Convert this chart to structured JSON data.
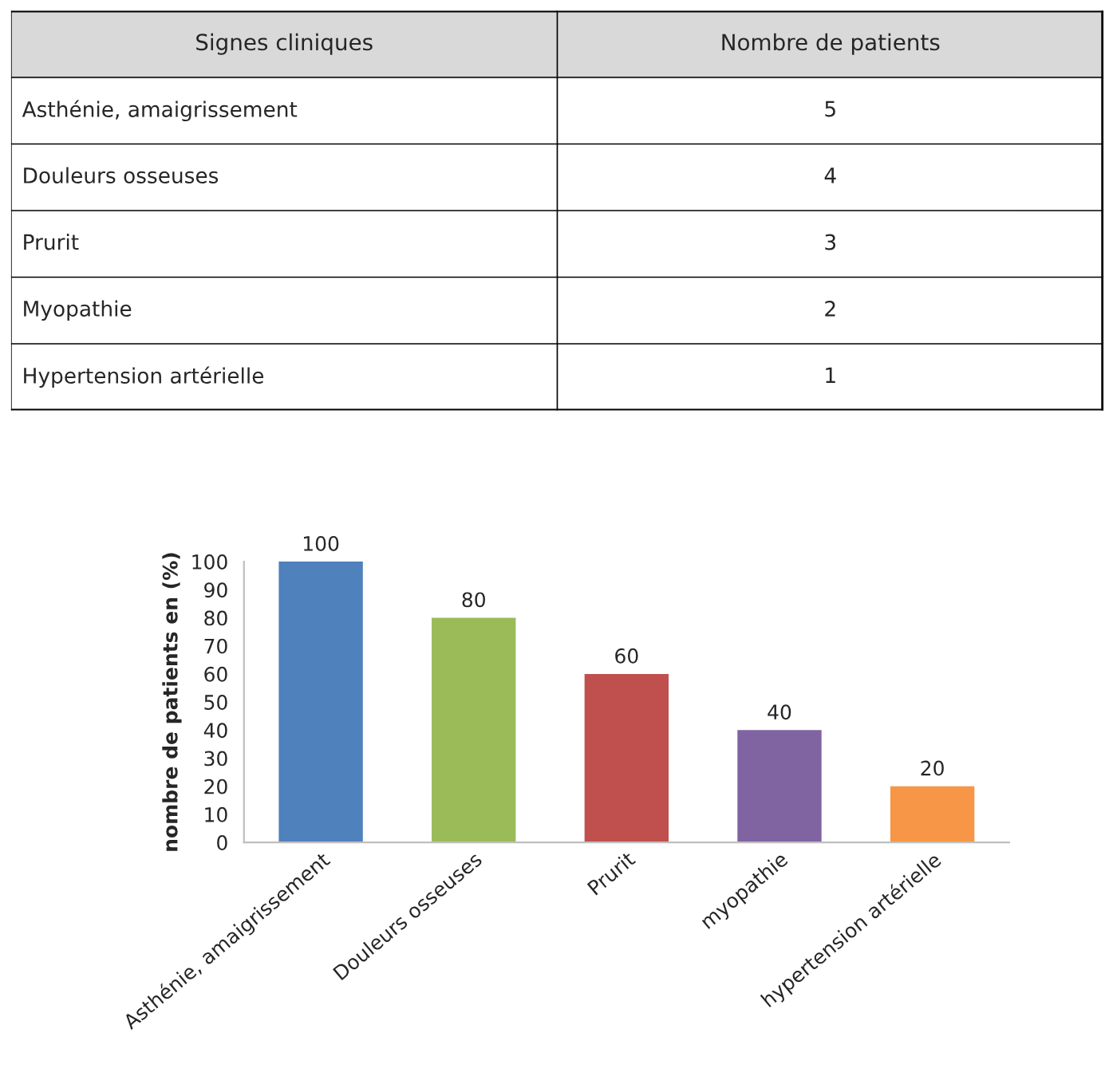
{
  "chart_data": [
    {
      "type": "other",
      "xlabel": "Signes cliniques",
      "ylabel": "Nombre de patients",
      "categories": [
        "Asthénie, amaigrissement",
        "Douleurs osseuses",
        "Prurit",
        "Myopathie",
        "Hypertension artérielle"
      ],
      "values": [
        5,
        4,
        3,
        2,
        1
      ],
      "data_labels": true
    },
    {
      "type": "bar",
      "ylabel": "nombre de patients en (%)",
      "categories": [
        "Asthénie, amaigrissement",
        "Douleurs osseuses",
        "Prurit",
        "myopathie",
        "hypertension artérielle"
      ],
      "values": [
        100,
        80,
        60,
        40,
        20
      ],
      "colors": [
        "#4f81bd",
        "#9bbb59",
        "#c0504d",
        "#8064a2",
        "#f79646"
      ],
      "ylim": [
        0,
        100
      ],
      "yticks": [
        0,
        10,
        20,
        30,
        40,
        50,
        60,
        70,
        80,
        90,
        100
      ],
      "data_labels": true,
      "grid": false,
      "legend": false
    }
  ]
}
